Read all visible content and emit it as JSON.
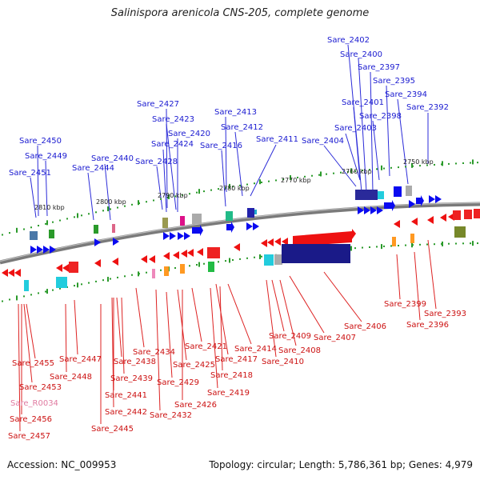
{
  "header": {
    "title": "Salinispora arenicola CNS-205, complete genome"
  },
  "footer": {
    "accession": "Accession: NC_009953",
    "summary": "Topology: circular; Length: 5,786,361 bp; Genes: 4,979"
  },
  "colors": {
    "forward_label": "#1a1ad0",
    "reverse_label": "#cc1111",
    "rna_label": "#e07aa0",
    "backbone": "#777777",
    "tick": "#2a9a2a"
  },
  "scale_labels": [
    "2810 kbp",
    "2800 kbp",
    "2790 kbp",
    "2780 kbp",
    "2770 kbp",
    "2760 kbp",
    "2750 kbp"
  ],
  "forward_labels": [
    "Sare_2402",
    "Sare_2400",
    "Sare_2397",
    "Sare_2395",
    "Sare_2394",
    "Sare_2401",
    "Sare_2398",
    "Sare_2392",
    "Sare_2427",
    "Sare_2413",
    "Sare_2423",
    "Sare_2412",
    "Sare_2403",
    "Sare_2420",
    "Sare_2450",
    "Sare_2411",
    "Sare_2404",
    "Sare_2424",
    "Sare_2416",
    "Sare_2449",
    "Sare_2440",
    "Sare_2428",
    "Sare_2444",
    "Sare_2451"
  ],
  "reverse_labels": [
    "Sare_2399",
    "Sare_2393",
    "Sare_2396",
    "Sare_2406",
    "Sare_2409",
    "Sare_2407",
    "Sare_2408",
    "Sare_2410",
    "Sare_2434",
    "Sare_2421",
    "Sare_2447",
    "Sare_2414",
    "Sare_2438",
    "Sare_2417",
    "Sare_2425",
    "Sare_2455",
    "Sare_2448",
    "Sare_2439",
    "Sare_2418",
    "Sare_2429",
    "Sare_2453",
    "Sare_2419",
    "Sare_2441",
    "Sare_2426",
    "Sare_2442",
    "Sare_2432",
    "Sare_2456",
    "Sare_2445",
    "Sare_2457"
  ],
  "rna_labels": [
    "Sare_R0034"
  ]
}
